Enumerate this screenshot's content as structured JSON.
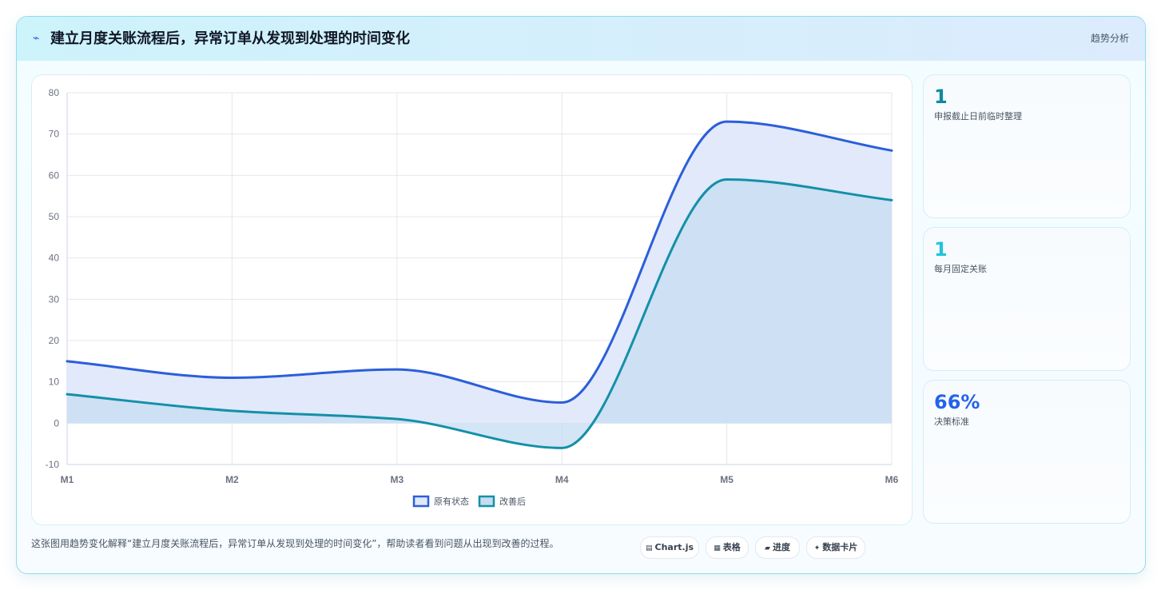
{
  "header": {
    "title": "建立月度关账流程后，异常订单从发现到处理的时间变化",
    "tag": "趋势分析",
    "icon": "trend-line-icon"
  },
  "chart_data": {
    "type": "area",
    "x": [
      "M1",
      "M2",
      "M3",
      "M4",
      "M5",
      "M6"
    ],
    "y_ticks": [
      "80",
      "70",
      "60",
      "50",
      "40",
      "30",
      "20",
      "10",
      "0",
      "-10"
    ],
    "ylim": [
      -10,
      80
    ],
    "grid": true,
    "legend_position": "bottom",
    "series": [
      {
        "name": "原有状态",
        "values": [
          15,
          11,
          13,
          5,
          73,
          66
        ],
        "color": "#2b5fd9",
        "fill": "#dfe8fb"
      },
      {
        "name": "改善后",
        "values": [
          7,
          3,
          1,
          -6,
          59,
          54
        ],
        "color": "#1390a8",
        "fill": "#c5dcf1"
      }
    ]
  },
  "side_cards": [
    {
      "value": "1",
      "label": "申报截止日前临时整理",
      "color": "#0e8aa0"
    },
    {
      "value": "1",
      "label": "每月固定关账",
      "color": "#22c3dc"
    },
    {
      "value": "66%",
      "label": "决策标准",
      "color": "#2563eb"
    }
  ],
  "footer": {
    "text": "这张图用趋势变化解释“建立月度关账流程后，异常订单从发现到处理的时间变化”，帮助读者看到问题从出现到改善的过程。",
    "chips": [
      {
        "icon": "▤",
        "label": "Chart.js"
      },
      {
        "icon": "▦",
        "label": "表格"
      },
      {
        "icon": "▰",
        "label": "进度"
      },
      {
        "icon": "✦",
        "label": "数据卡片"
      }
    ]
  }
}
